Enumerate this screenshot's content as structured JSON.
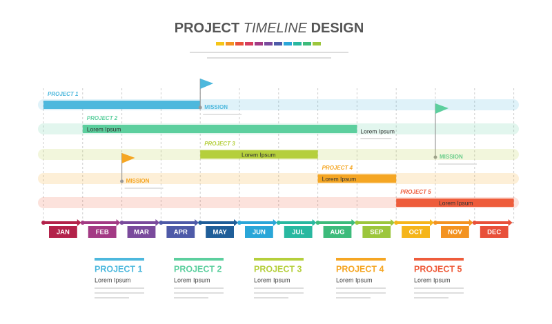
{
  "header": {
    "title_1": "PROJECT",
    "title_2": "TIMELINE",
    "title_3": "DESIGN"
  },
  "timeline": {
    "months": [
      "JAN",
      "FEB",
      "MAR",
      "APR",
      "MAY",
      "JUN",
      "JUL",
      "AUG",
      "SEP",
      "OCT",
      "NOV",
      "DEC"
    ],
    "rows": [
      {
        "label": "PROJECT 1",
        "mission": "MISSION"
      },
      {
        "label": "PROJECT 2",
        "text": "Lorem Ipsum",
        "note": "Lorem Ipsum",
        "mission": "MISSION"
      },
      {
        "label": "PROJECT 3",
        "text": "Lorem Ipsum"
      },
      {
        "label": "PROJECT 4",
        "text": "Lorem Ipsum",
        "mission": "MISSION"
      },
      {
        "label": "PROJECT 5",
        "text": "Lorem Ipsum"
      }
    ]
  },
  "legend": [
    {
      "title": "PROJECT 1",
      "text": "Lorem Ipsum"
    },
    {
      "title": "PROJECT 2",
      "text": "Lorem Ipsum"
    },
    {
      "title": "PROJECT 3",
      "text": "Lorem Ipsum"
    },
    {
      "title": "PROJECT 4",
      "text": "Lorem Ipsum"
    },
    {
      "title": "PROJECT 5",
      "text": "Lorem Ipsum"
    }
  ]
}
